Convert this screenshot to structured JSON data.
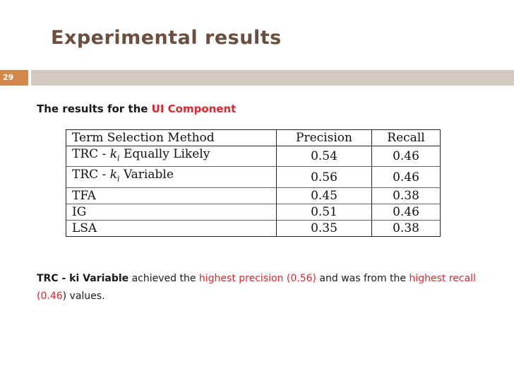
{
  "slide": {
    "title": "Experimental results",
    "number": "29",
    "subtitle_prefix": "The results for the ",
    "subtitle_highlight": "UI Component"
  },
  "table": {
    "headers": [
      "Term Selection Method",
      "Precision",
      "Recall"
    ],
    "rows": [
      {
        "method_pre": "TRC - ",
        "method_ki": "k",
        "method_sub": "i",
        "method_post": " Equally Likely",
        "precision": "0.54",
        "recall": "0.46"
      },
      {
        "method_pre": "TRC - ",
        "method_ki": "k",
        "method_sub": "i",
        "method_post": " Variable",
        "precision": "0.56",
        "recall": "0.46"
      },
      {
        "method": "TFA",
        "precision": "0.45",
        "recall": "0.38"
      },
      {
        "method": "IG",
        "precision": "0.51",
        "recall": "0.46"
      },
      {
        "method": "LSA",
        "precision": "0.35",
        "recall": "0.38"
      }
    ]
  },
  "summary": {
    "bold_lead": "TRC - ki Variable",
    "text1": " achieved the ",
    "hl1": "highest precision (0.56)",
    "text2": " and was from the ",
    "hl2": "highest recall (0.46",
    "text3": ") values."
  },
  "colors": {
    "title": "#6b4e3d",
    "accent": "#d2884a",
    "rule": "#d4c9be",
    "highlight": "#e0262d"
  }
}
